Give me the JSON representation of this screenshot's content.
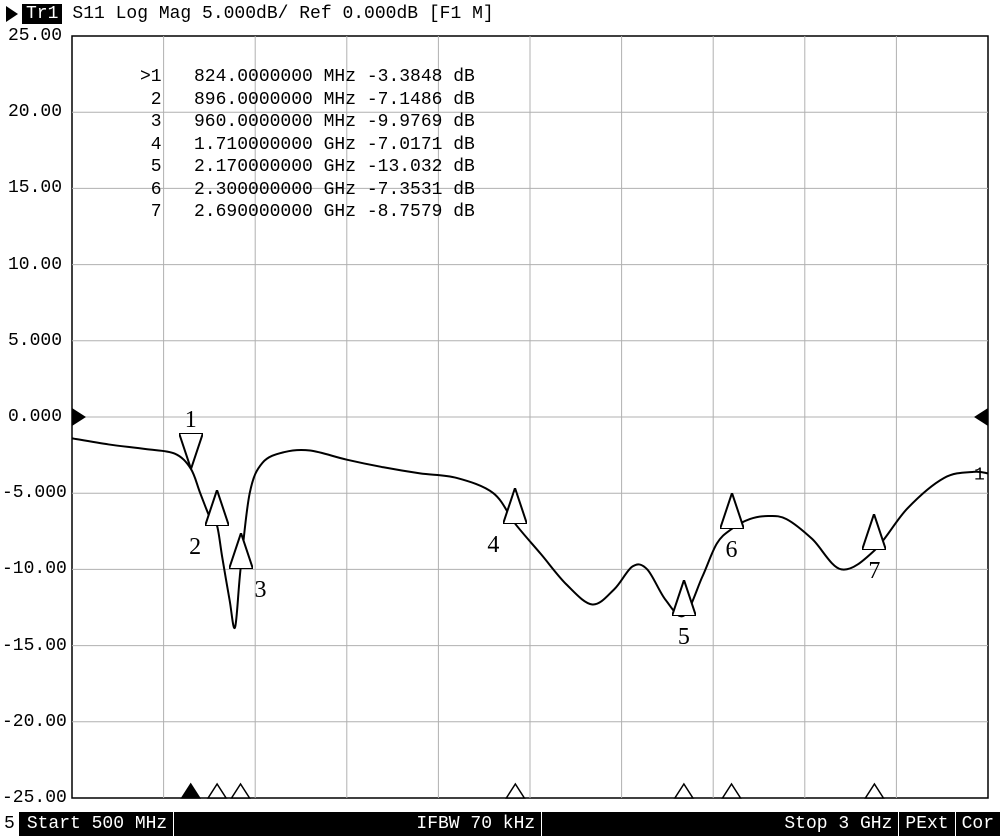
{
  "header": {
    "trace_id": "Tr1",
    "title": "S11 Log Mag 5.000dB/ Ref 0.000dB [F1 M]"
  },
  "chart": {
    "type": "line",
    "background_color": "#ffffff",
    "border_color": "#000000",
    "grid_color": "#b0b0b0",
    "trace_color": "#000000",
    "trace_width": 2,
    "font_family": "Courier New",
    "tick_fontsize": 18,
    "x_axis": {
      "min_mhz": 500,
      "max_mhz": 3000,
      "divisions": 10
    },
    "y_axis": {
      "min_db": -25,
      "max_db": 25,
      "divisions": 10,
      "tick_labels": [
        "25.00",
        "20.00",
        "15.00",
        "10.00",
        "5.000",
        "0.000",
        "-5.000",
        "-10.00",
        "-15.00",
        "-20.00",
        "-25.00"
      ]
    },
    "ref_indicator_y_db": 0.0,
    "trace_points_mhz_db": [
      [
        500,
        -1.4
      ],
      [
        600,
        -1.8
      ],
      [
        700,
        -2.1
      ],
      [
        780,
        -2.4
      ],
      [
        824,
        -3.3848
      ],
      [
        850,
        -5.0
      ],
      [
        880,
        -6.8
      ],
      [
        896,
        -7.1486
      ],
      [
        910,
        -9.2
      ],
      [
        930,
        -12.0
      ],
      [
        945,
        -13.8
      ],
      [
        960,
        -9.9769
      ],
      [
        985,
        -5.0
      ],
      [
        1020,
        -3.0
      ],
      [
        1080,
        -2.3
      ],
      [
        1150,
        -2.2
      ],
      [
        1250,
        -2.8
      ],
      [
        1350,
        -3.3
      ],
      [
        1450,
        -3.7
      ],
      [
        1550,
        -4.0
      ],
      [
        1650,
        -5.0
      ],
      [
        1710,
        -7.0171
      ],
      [
        1780,
        -9.0
      ],
      [
        1850,
        -11.0
      ],
      [
        1920,
        -12.3
      ],
      [
        1980,
        -11.3
      ],
      [
        2030,
        -9.8
      ],
      [
        2070,
        -10.0
      ],
      [
        2120,
        -12.0
      ],
      [
        2170,
        -13.032
      ],
      [
        2220,
        -10.5
      ],
      [
        2260,
        -8.3
      ],
      [
        2300,
        -7.3531
      ],
      [
        2350,
        -6.7
      ],
      [
        2400,
        -6.5
      ],
      [
        2450,
        -6.7
      ],
      [
        2520,
        -8.0
      ],
      [
        2600,
        -10.0
      ],
      [
        2690,
        -8.7579
      ],
      [
        2780,
        -6.0
      ],
      [
        2880,
        -4.0
      ],
      [
        2960,
        -3.6
      ],
      [
        3000,
        -3.7
      ]
    ],
    "trace_right_label": "1",
    "markers": [
      {
        "n": 1,
        "freq_str": "824.0000000",
        "unit": "MHz",
        "db": "-3.3848",
        "mhz": 824,
        "y_db": -3.3848,
        "active": true,
        "label_pos": "above"
      },
      {
        "n": 2,
        "freq_str": "896.0000000",
        "unit": "MHz",
        "db": "-7.1486",
        "mhz": 896,
        "y_db": -7.1486,
        "active": false,
        "label_pos": "below-left"
      },
      {
        "n": 3,
        "freq_str": "960.0000000",
        "unit": "MHz",
        "db": "-9.9769",
        "mhz": 960,
        "y_db": -9.9769,
        "active": false,
        "label_pos": "below-right"
      },
      {
        "n": 4,
        "freq_str": "1.710000000",
        "unit": "GHz",
        "db": "-7.0171",
        "mhz": 1710,
        "y_db": -7.0171,
        "active": false,
        "label_pos": "below-left"
      },
      {
        "n": 5,
        "freq_str": "2.170000000",
        "unit": "GHz",
        "db": "-13.032",
        "mhz": 2170,
        "y_db": -13.032,
        "active": false,
        "label_pos": "below"
      },
      {
        "n": 6,
        "freq_str": "2.300000000",
        "unit": "GHz",
        "db": "-7.3531",
        "mhz": 2300,
        "y_db": -7.3531,
        "active": false,
        "label_pos": "below"
      },
      {
        "n": 7,
        "freq_str": "2.690000000",
        "unit": "GHz",
        "db": "-8.7579",
        "mhz": 2690,
        "y_db": -8.7579,
        "active": false,
        "label_pos": "below"
      }
    ],
    "marker_triangle": {
      "width": 24,
      "height": 36,
      "stroke": "#000000",
      "fill": "#ffffff",
      "active_fill": "#ffffff"
    },
    "axis_mini_markers_mhz": [
      824,
      896,
      960,
      1710,
      2170,
      2300,
      2690
    ],
    "axis_mini_marker_filled_index": 0
  },
  "marker_table": {
    "rows": [
      ">1   824.0000000 MHz -3.3848 dB",
      " 2   896.0000000 MHz -7.1486 dB",
      " 3   960.0000000 MHz -9.9769 dB",
      " 4   1.710000000 GHz -7.0171 dB",
      " 5   2.170000000 GHz -13.032 dB",
      " 6   2.300000000 GHz -7.3531 dB",
      " 7   2.690000000 GHz -8.7579 dB"
    ]
  },
  "status_bar": {
    "channel": "5",
    "start": "Start 500 MHz",
    "ifbw": "IFBW 70 kHz",
    "stop": "Stop 3 GHz",
    "pext": "PExt",
    "cor": "Cor"
  }
}
